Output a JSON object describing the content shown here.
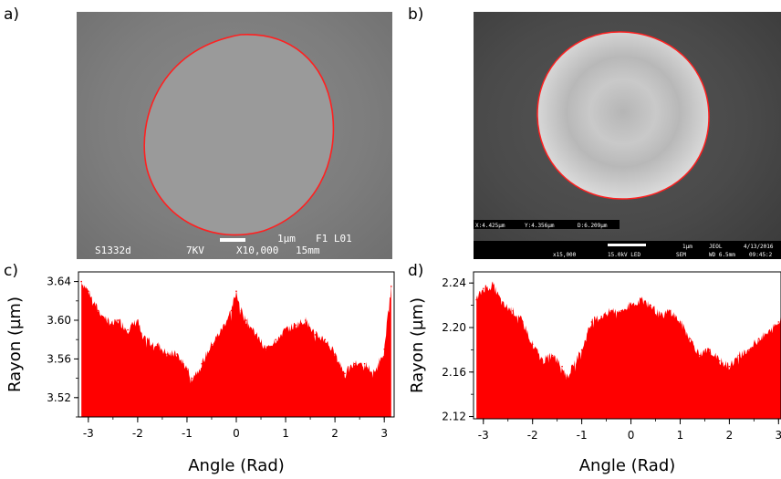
{
  "panels": {
    "a": {
      "label": "a)"
    },
    "b": {
      "label": "b)"
    },
    "c": {
      "label": "c)"
    },
    "d": {
      "label": "d)"
    }
  },
  "sem_a": {
    "scale_text": "1µm",
    "codes": "F1 L01",
    "sample": "S1332d",
    "voltage": "7KV",
    "magnification": "X10,000",
    "working_distance": "15mm"
  },
  "sem_b": {
    "x_readout": "X:4.425µm",
    "y_readout": "Y:4.356µm",
    "d_readout": "D:6.209µm",
    "magnification": "x15,000",
    "voltage": "15.0kV LED",
    "mode": "SEM",
    "scale_text": "1µm",
    "brand": "JEOL",
    "working_distance": "WD 6.5mm",
    "date": "4/13/2016",
    "time": "09:45:2"
  },
  "colors": {
    "fill": "#ff0000",
    "contour": "#ff2020"
  },
  "chart_data": [
    {
      "type": "area",
      "panel": "c",
      "xlabel": "Angle (Rad)",
      "ylabel": "Rayon (µm)",
      "xlim": [
        -3.2,
        3.2
      ],
      "ylim": [
        3.5,
        3.65
      ],
      "xticks": [
        -3,
        -2,
        -1,
        0,
        1,
        2,
        3
      ],
      "yticks": [
        3.52,
        3.56,
        3.6,
        3.64
      ],
      "ytick_labels": [
        "3.52",
        "3.56",
        "3.60",
        "3.64"
      ],
      "x": [
        -3.14,
        -3.0,
        -2.8,
        -2.6,
        -2.5,
        -2.4,
        -2.2,
        -2.0,
        -1.9,
        -1.8,
        -1.6,
        -1.4,
        -1.2,
        -1.0,
        -0.9,
        -0.7,
        -0.5,
        -0.3,
        -0.1,
        0.0,
        0.1,
        0.2,
        0.4,
        0.6,
        0.8,
        1.0,
        1.2,
        1.4,
        1.6,
        1.8,
        2.0,
        2.2,
        2.4,
        2.6,
        2.8,
        3.0,
        3.14
      ],
      "y": [
        3.64,
        3.63,
        3.61,
        3.6,
        3.595,
        3.6,
        3.59,
        3.6,
        3.58,
        3.58,
        3.575,
        3.565,
        3.565,
        3.55,
        3.54,
        3.555,
        3.575,
        3.59,
        3.61,
        3.63,
        3.61,
        3.6,
        3.585,
        3.57,
        3.58,
        3.59,
        3.595,
        3.6,
        3.585,
        3.58,
        3.565,
        3.545,
        3.555,
        3.555,
        3.545,
        3.57,
        3.635
      ]
    },
    {
      "type": "area",
      "panel": "d",
      "xlabel": "Angle (Rad)",
      "ylabel": "Rayon (µm)",
      "xlim": [
        -3.2,
        3.05
      ],
      "ylim": [
        2.118,
        2.25
      ],
      "xticks": [
        -3,
        -2,
        -1,
        0,
        1,
        2,
        3
      ],
      "yticks": [
        2.12,
        2.16,
        2.2,
        2.24
      ],
      "ytick_labels": [
        "2.12",
        "2.16",
        "2.20",
        "2.24"
      ],
      "x": [
        -3.14,
        -3.0,
        -2.8,
        -2.6,
        -2.4,
        -2.2,
        -2.0,
        -1.8,
        -1.6,
        -1.4,
        -1.3,
        -1.2,
        -1.0,
        -0.8,
        -0.6,
        -0.4,
        -0.2,
        0.0,
        0.2,
        0.4,
        0.6,
        0.8,
        1.0,
        1.2,
        1.4,
        1.6,
        1.8,
        2.0,
        2.2,
        2.4,
        2.6,
        2.8,
        3.0,
        3.14
      ],
      "y": [
        2.225,
        2.235,
        2.238,
        2.22,
        2.215,
        2.205,
        2.185,
        2.17,
        2.175,
        2.165,
        2.155,
        2.165,
        2.18,
        2.205,
        2.21,
        2.215,
        2.215,
        2.22,
        2.225,
        2.22,
        2.21,
        2.215,
        2.205,
        2.19,
        2.175,
        2.18,
        2.17,
        2.165,
        2.175,
        2.18,
        2.19,
        2.195,
        2.205,
        2.22
      ]
    }
  ]
}
